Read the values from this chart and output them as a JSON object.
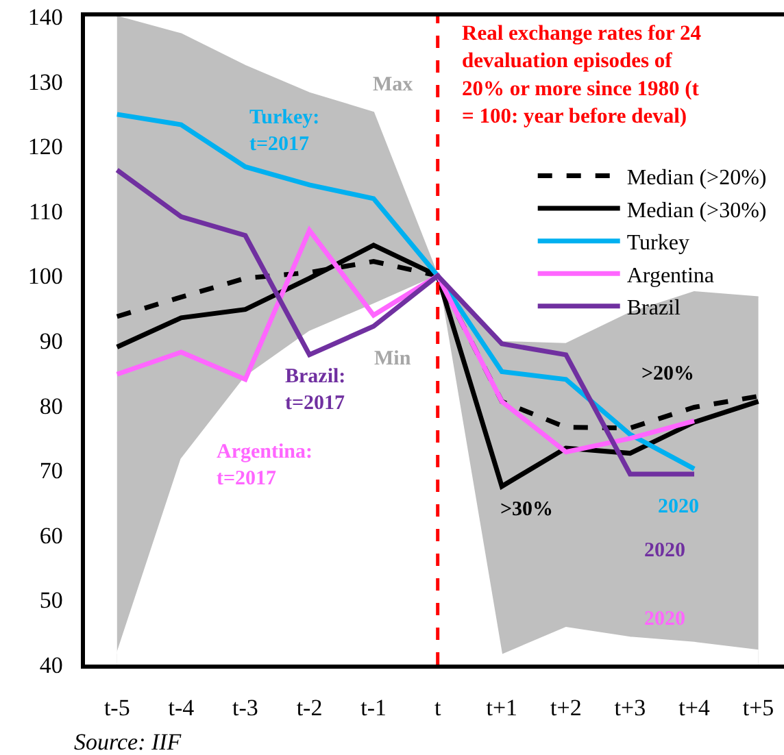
{
  "chart_data": {
    "type": "line",
    "title": "Real exchange rates for 24 devaluation episodes of 20% or more since 1980 (t = 100: year before deval)",
    "categories": [
      "t-5",
      "t-4",
      "t-3",
      "t-2",
      "t-1",
      "t",
      "t+1",
      "t+2",
      "t+3",
      "t+4",
      "t+5"
    ],
    "series": [
      {
        "name": "Max",
        "type": "area",
        "color": "#bfbfbf",
        "values": [
          140,
          137.3,
          132.4,
          128.2,
          125.2,
          100,
          89.8,
          89.5,
          94.3,
          97.5,
          96.7
        ]
      },
      {
        "name": "Min",
        "type": "area",
        "color": "#ffffff",
        "values": [
          41.7,
          71.7,
          84.4,
          91.4,
          95.6,
          100,
          41.5,
          45.7,
          44.2,
          43.4,
          42.2
        ]
      },
      {
        "name": "Median (>20%)",
        "color": "#000000",
        "line_style": "dashed",
        "values": [
          93.7,
          96.7,
          99.6,
          100.5,
          102.2,
          100,
          80.6,
          76.6,
          76.5,
          79.7,
          81.4
        ]
      },
      {
        "name": "Median (>30%)",
        "color": "#000000",
        "line_style": "solid",
        "values": [
          89.0,
          93.5,
          94.8,
          99.6,
          104.7,
          100,
          67.5,
          73.4,
          72.6,
          77.4,
          80.6
        ]
      },
      {
        "name": "Turkey",
        "color": "#00b0f0",
        "line_style": "solid",
        "values": [
          124.9,
          123.3,
          116.8,
          114.0,
          111.9,
          100,
          85.2,
          84.0,
          75.5,
          70.2,
          null
        ]
      },
      {
        "name": "Argentina",
        "color": "#ff66ff",
        "line_style": "solid",
        "values": [
          84.8,
          88.2,
          84.0,
          107.0,
          93.9,
          100,
          80.6,
          72.8,
          74.9,
          77.6,
          null
        ]
      },
      {
        "name": "Brazil",
        "color": "#7030a0",
        "line_style": "solid",
        "values": [
          116.3,
          109.1,
          106.2,
          87.8,
          92.2,
          100,
          89.5,
          87.8,
          69.4,
          69.4,
          null
        ]
      }
    ],
    "ylim": [
      40,
      140
    ],
    "yticks": [
      40,
      50,
      60,
      70,
      80,
      90,
      100,
      110,
      120,
      130,
      140
    ],
    "grid": false,
    "legend": "top right",
    "marker": "none",
    "ref_lines": [
      {
        "axis": "x",
        "value": "t",
        "color": "#ff0000",
        "line_style": "dashed"
      }
    ],
    "annotations": [
      "Turkey: t=2017",
      "Brazil: t=2017",
      "Argentina: t=2017",
      ">20%",
      ">30%",
      "2020",
      "2020",
      "2020",
      "Source: IIF"
    ]
  }
}
